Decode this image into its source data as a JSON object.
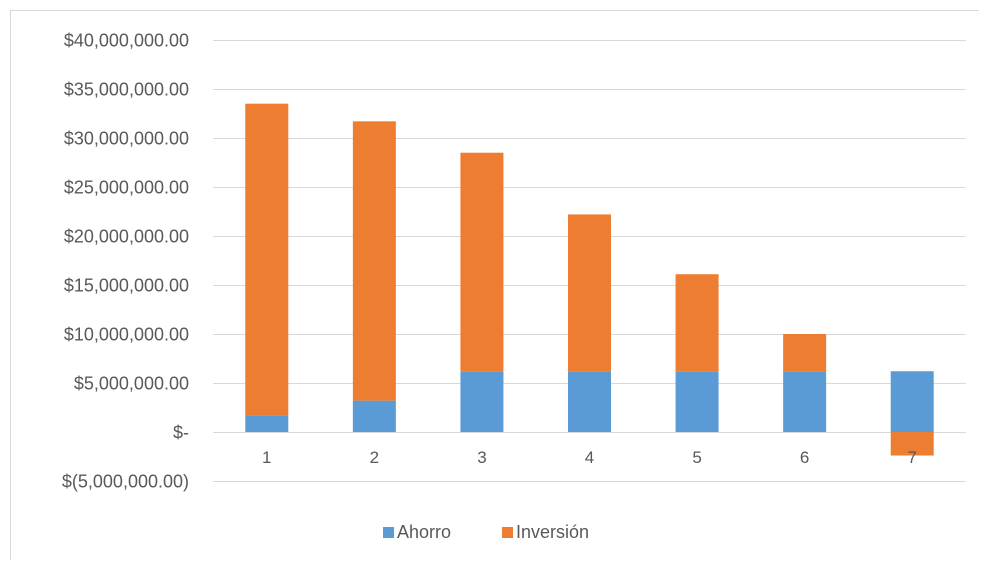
{
  "chart_data": {
    "type": "bar",
    "stacked": true,
    "categories": [
      "1",
      "2",
      "3",
      "4",
      "5",
      "6",
      "7"
    ],
    "series": [
      {
        "name": "Ahorro",
        "color": "#5B9BD5",
        "values": [
          1700000,
          3200000,
          6200000,
          6200000,
          6200000,
          6200000,
          6200000
        ]
      },
      {
        "name": "Inversión",
        "color": "#ED7D31",
        "values": [
          31800000,
          28500000,
          22300000,
          16000000,
          9900000,
          3800000,
          -2400000
        ]
      }
    ],
    "yticks": [
      {
        "value": 40000000,
        "label": "$40,000,000.00"
      },
      {
        "value": 35000000,
        "label": "$35,000,000.00"
      },
      {
        "value": 30000000,
        "label": "$30,000,000.00"
      },
      {
        "value": 25000000,
        "label": "$25,000,000.00"
      },
      {
        "value": 20000000,
        "label": "$20,000,000.00"
      },
      {
        "value": 15000000,
        "label": "$15,000,000.00"
      },
      {
        "value": 10000000,
        "label": "$10,000,000.00"
      },
      {
        "value": 5000000,
        "label": "$5,000,000.00"
      },
      {
        "value": 0,
        "label": "$-"
      },
      {
        "value": -5000000,
        "label": "$(5,000,000.00)"
      }
    ],
    "ylim": [
      -5000000,
      40000000
    ],
    "grid": true,
    "legend_position": "bottom",
    "title": "",
    "xlabel": "",
    "ylabel": ""
  }
}
